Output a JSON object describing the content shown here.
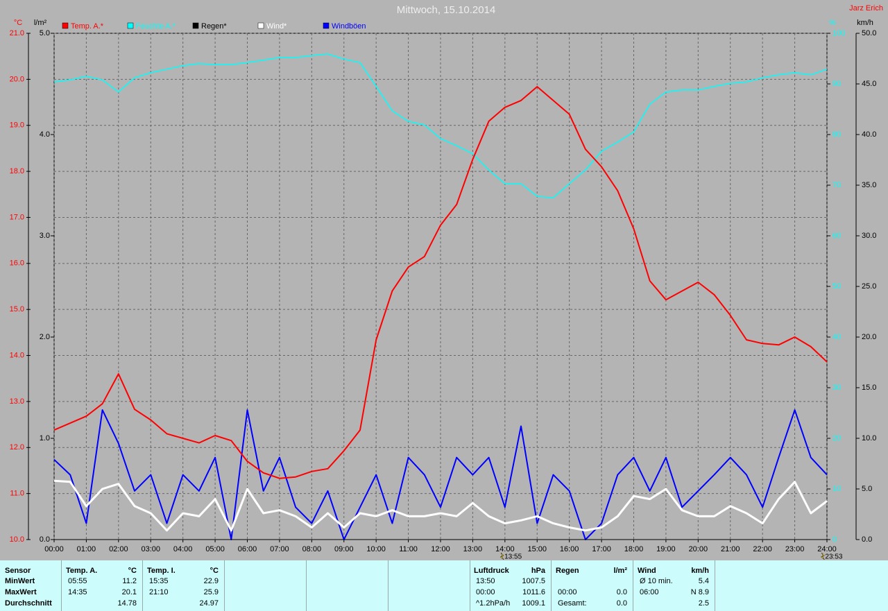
{
  "chart_data": {
    "type": "line",
    "title": "Mittwoch, 15.10.2014",
    "author": "Jarz Erich",
    "ylabel": "°C",
    "y2label": "l/m²",
    "y3label": "%",
    "y4label": "km/h",
    "x": [
      0,
      0.5,
      1,
      1.5,
      2,
      2.5,
      3,
      3.5,
      4,
      4.5,
      5,
      5.5,
      6,
      6.5,
      7,
      7.5,
      8,
      8.5,
      9,
      9.5,
      10,
      10.5,
      11,
      11.5,
      12,
      12.5,
      13,
      13.5,
      14,
      14.5,
      15,
      15.5,
      16,
      16.5,
      17,
      17.5,
      18,
      18.5,
      19,
      19.5,
      20,
      20.5,
      21,
      21.5,
      22,
      22.5,
      23,
      23.5,
      24
    ],
    "xlim": [
      0,
      24
    ],
    "xticks": [
      {
        "value": 0,
        "label": "00:00"
      },
      {
        "value": 1,
        "label": "01:00"
      },
      {
        "value": 2,
        "label": "02:00"
      },
      {
        "value": 3,
        "label": "03:00"
      },
      {
        "value": 4,
        "label": "04:00"
      },
      {
        "value": 5,
        "label": "05:00"
      },
      {
        "value": 6,
        "label": "06:00"
      },
      {
        "value": 7,
        "label": "07:00"
      },
      {
        "value": 8,
        "label": "08:00"
      },
      {
        "value": 9,
        "label": "09:00"
      },
      {
        "value": 10,
        "label": "10:00"
      },
      {
        "value": 11,
        "label": "11:00"
      },
      {
        "value": 12,
        "label": "12:00"
      },
      {
        "value": 13,
        "label": "13:00"
      },
      {
        "value": 14,
        "label": "14:00"
      },
      {
        "value": 15,
        "label": "15:00"
      },
      {
        "value": 16,
        "label": "16:00"
      },
      {
        "value": 17,
        "label": "17:00"
      },
      {
        "value": 18,
        "label": "18:00"
      },
      {
        "value": 19,
        "label": "19:00"
      },
      {
        "value": 20,
        "label": "20:00"
      },
      {
        "value": 21,
        "label": "21:00"
      },
      {
        "value": 22,
        "label": "22:00"
      },
      {
        "value": 23,
        "label": "23:00"
      },
      {
        "value": 24,
        "label": "24:00"
      }
    ],
    "ylim": [
      10,
      21
    ],
    "yticks": [
      {
        "value": 10,
        "label": "10.0"
      },
      {
        "value": 11,
        "label": "11.0"
      },
      {
        "value": 12,
        "label": "12.0"
      },
      {
        "value": 13,
        "label": "13.0"
      },
      {
        "value": 14,
        "label": "14.0"
      },
      {
        "value": 15,
        "label": "15.0"
      },
      {
        "value": 16,
        "label": "16.0"
      },
      {
        "value": 17,
        "label": "17.0"
      },
      {
        "value": 18,
        "label": "18.0"
      },
      {
        "value": 19,
        "label": "19.0"
      },
      {
        "value": 20,
        "label": "20.0"
      },
      {
        "value": 21,
        "label": "21.0"
      }
    ],
    "y2lim": [
      0,
      5
    ],
    "y2ticks": [
      {
        "value": 0,
        "label": "0.0"
      },
      {
        "value": 1,
        "label": "1.0"
      },
      {
        "value": 2,
        "label": "2.0"
      },
      {
        "value": 3,
        "label": "3.0"
      },
      {
        "value": 4,
        "label": "4.0"
      },
      {
        "value": 5,
        "label": "5.0"
      }
    ],
    "y3lim": [
      0,
      100
    ],
    "y3ticks": [
      0,
      10,
      20,
      30,
      40,
      50,
      60,
      70,
      80,
      90,
      100
    ],
    "y4lim": [
      0,
      50
    ],
    "y4ticks": [
      {
        "value": 0,
        "label": "0.0"
      },
      {
        "value": 5,
        "label": "5.0"
      },
      {
        "value": 10,
        "label": "10.0"
      },
      {
        "value": 15,
        "label": "15.0"
      },
      {
        "value": 20,
        "label": "20.0"
      },
      {
        "value": 25,
        "label": "25.0"
      },
      {
        "value": 30,
        "label": "30.0"
      },
      {
        "value": 35,
        "label": "35.0"
      },
      {
        "value": 40,
        "label": "40.0"
      },
      {
        "value": 45,
        "label": "45.0"
      },
      {
        "value": 50,
        "label": "50.0"
      }
    ],
    "grid": true,
    "series": [
      {
        "name": "Temp. A.*",
        "color": "#ff0000",
        "axis": "y",
        "values": [
          12.38,
          12.53,
          12.68,
          12.95,
          13.6,
          12.83,
          12.6,
          12.3,
          12.2,
          12.1,
          12.26,
          12.15,
          11.7,
          11.45,
          11.33,
          11.36,
          11.48,
          11.54,
          11.93,
          12.38,
          14.34,
          15.4,
          15.92,
          16.15,
          16.83,
          17.28,
          18.26,
          19.09,
          19.39,
          19.54,
          19.84,
          19.54,
          19.24,
          18.48,
          18.1,
          17.58,
          16.75,
          15.62,
          15.21,
          15.4,
          15.59,
          15.32,
          14.87,
          14.34,
          14.26,
          14.23,
          14.4,
          14.19,
          13.86
        ]
      },
      {
        "name": "Feuchte A.*",
        "color": "#00ffff",
        "axis": "y3",
        "values": [
          90.4,
          90.8,
          91.5,
          90.8,
          88.4,
          91.2,
          92.2,
          92.9,
          93.6,
          94,
          93.8,
          93.8,
          94.2,
          94.7,
          95.2,
          95.2,
          95.6,
          95.9,
          94.9,
          94.2,
          89.5,
          84.7,
          82.6,
          81.9,
          79.2,
          77.8,
          76.2,
          73,
          70.3,
          70.3,
          67.8,
          67.5,
          70.3,
          73,
          76.7,
          78.5,
          80.5,
          86,
          88.4,
          88.8,
          88.8,
          89.5,
          90.1,
          90.4,
          91.2,
          91.8,
          92.2,
          91.8,
          92.9
        ]
      },
      {
        "name": "Regen*",
        "color": "#000000",
        "axis": "y2",
        "values": [
          0,
          0,
          0,
          0,
          0,
          0,
          0,
          0,
          0,
          0,
          0,
          0,
          0,
          0,
          0,
          0,
          0,
          0,
          0,
          0,
          0,
          0,
          0,
          0,
          0,
          0,
          0,
          0,
          0,
          0,
          0,
          0,
          0,
          0,
          0,
          0,
          0,
          0,
          0,
          0,
          0,
          0,
          0,
          0,
          0,
          0,
          0,
          0,
          0
        ]
      },
      {
        "name": "Wind*",
        "color": "#ffffff",
        "axis": "y4",
        "values": [
          5.8,
          5.7,
          3.3,
          5,
          5.5,
          3.3,
          2.6,
          0.9,
          2.6,
          2.3,
          4,
          0.9,
          5,
          2.6,
          2.9,
          2.3,
          1.2,
          2.6,
          1.2,
          2.6,
          2.3,
          2.9,
          2.3,
          2.3,
          2.6,
          2.3,
          3.6,
          2.3,
          1.6,
          1.9,
          2.3,
          1.6,
          1.2,
          0.9,
          1.2,
          2.3,
          4.3,
          4,
          5,
          2.9,
          2.3,
          2.3,
          3.3,
          2.6,
          1.6,
          4,
          5.7,
          2.6,
          3.8
        ]
      },
      {
        "name": "Windböen",
        "color": "#0000ff",
        "axis": "y4",
        "values": [
          7.9,
          6.4,
          1.6,
          12.8,
          9.5,
          4.8,
          6.4,
          1.6,
          6.4,
          4.8,
          8.1,
          0,
          12.8,
          4.8,
          8.1,
          3.2,
          1.6,
          4.8,
          0,
          3.2,
          6.4,
          1.6,
          8.1,
          6.4,
          3.2,
          8.1,
          6.4,
          8.1,
          3.2,
          11.2,
          1.6,
          6.4,
          4.8,
          0,
          1.6,
          6.4,
          8.1,
          4.8,
          8.1,
          3.2,
          4.8,
          6.4,
          8.1,
          6.4,
          3.2,
          8.1,
          12.8,
          8.1,
          6.4
        ]
      }
    ],
    "annotations": [
      {
        "text": "13:55",
        "x": 13.92
      },
      {
        "text": "23:53",
        "x": 23.88
      }
    ]
  },
  "stats": {
    "sensor": {
      "header": "Sensor",
      "rows": [
        "MinWert",
        "MaxWert",
        "Durchschnitt"
      ]
    },
    "panels": [
      {
        "header": "Temp. A.",
        "unit": "°C",
        "rows": [
          [
            "05:55",
            "11.2"
          ],
          [
            "14:35",
            "20.1"
          ],
          [
            "14.78"
          ]
        ]
      },
      {
        "header": "Temp. I.",
        "unit": "°C",
        "rows": [
          [
            "15:35",
            "22.9"
          ],
          [
            "21:10",
            "25.9"
          ],
          [
            "24.97"
          ]
        ]
      },
      {
        "header": "Luftdruck",
        "unit": "hPa",
        "rows": [
          [
            "13:50",
            "1007.5"
          ],
          [
            "00:00",
            "1011.6"
          ],
          [
            "^1.2hPa/h",
            "1009.1"
          ]
        ]
      },
      {
        "header": "Regen",
        "unit": "l/m²",
        "rows": [
          null,
          [
            "00:00",
            "0.0"
          ],
          [
            "Gesamt:",
            "0.0"
          ]
        ]
      },
      {
        "header": "Wind",
        "unit": "km/h",
        "rows": [
          [
            "Ø 10 min.",
            "5.4"
          ],
          [
            "06:00",
            "N 8.9"
          ],
          [
            "2.5"
          ]
        ]
      }
    ]
  }
}
